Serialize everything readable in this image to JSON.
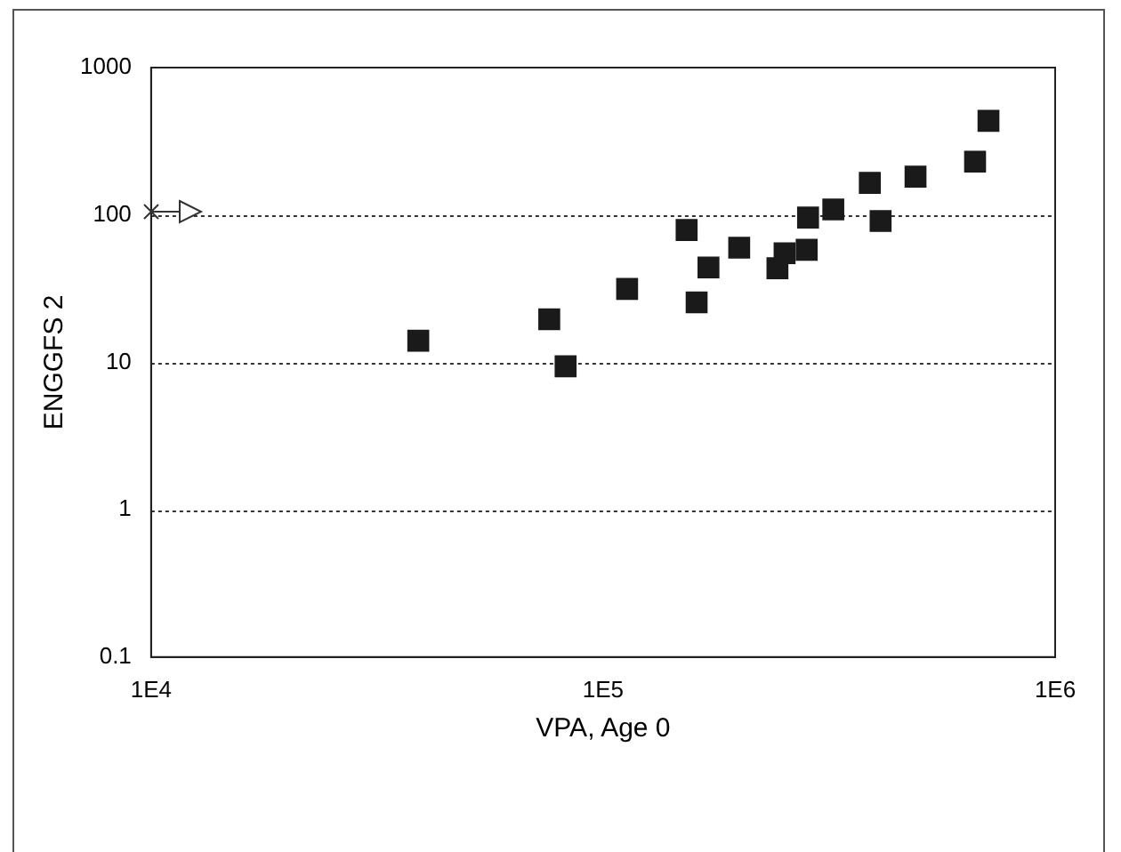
{
  "chart_data": {
    "type": "scatter",
    "xlabel": "VPA, Age 0",
    "ylabel": "ENGGFS 2",
    "log": "xy",
    "x": [
      39000,
      76000,
      82600,
      113000,
      153000,
      161000,
      171000,
      200000,
      243000,
      252000,
      282000,
      284000,
      323000,
      389000,
      411000,
      491000,
      665000,
      712000
    ],
    "series": [
      {
        "color": "#1a1a1a",
        "values": [
          14,
          19.6,
          9.4,
          31.5,
          79,
          25.5,
          44,
          60,
          43.5,
          55,
          58,
          96,
          109,
          165,
          91,
          182,
          230,
          435
        ]
      }
    ],
    "xlim": [
      10000,
      1000000
    ],
    "xticks": [
      {
        "value": 10000,
        "label": "1E4"
      },
      {
        "value": 100000,
        "label": "1E5"
      },
      {
        "value": 1000000,
        "label": "1E6"
      }
    ],
    "ylim": [
      0.1,
      1000
    ],
    "yticks": [
      0.1,
      1,
      10,
      100,
      1000
    ],
    "grid": "y",
    "marker": "square",
    "legend": false
  }
}
